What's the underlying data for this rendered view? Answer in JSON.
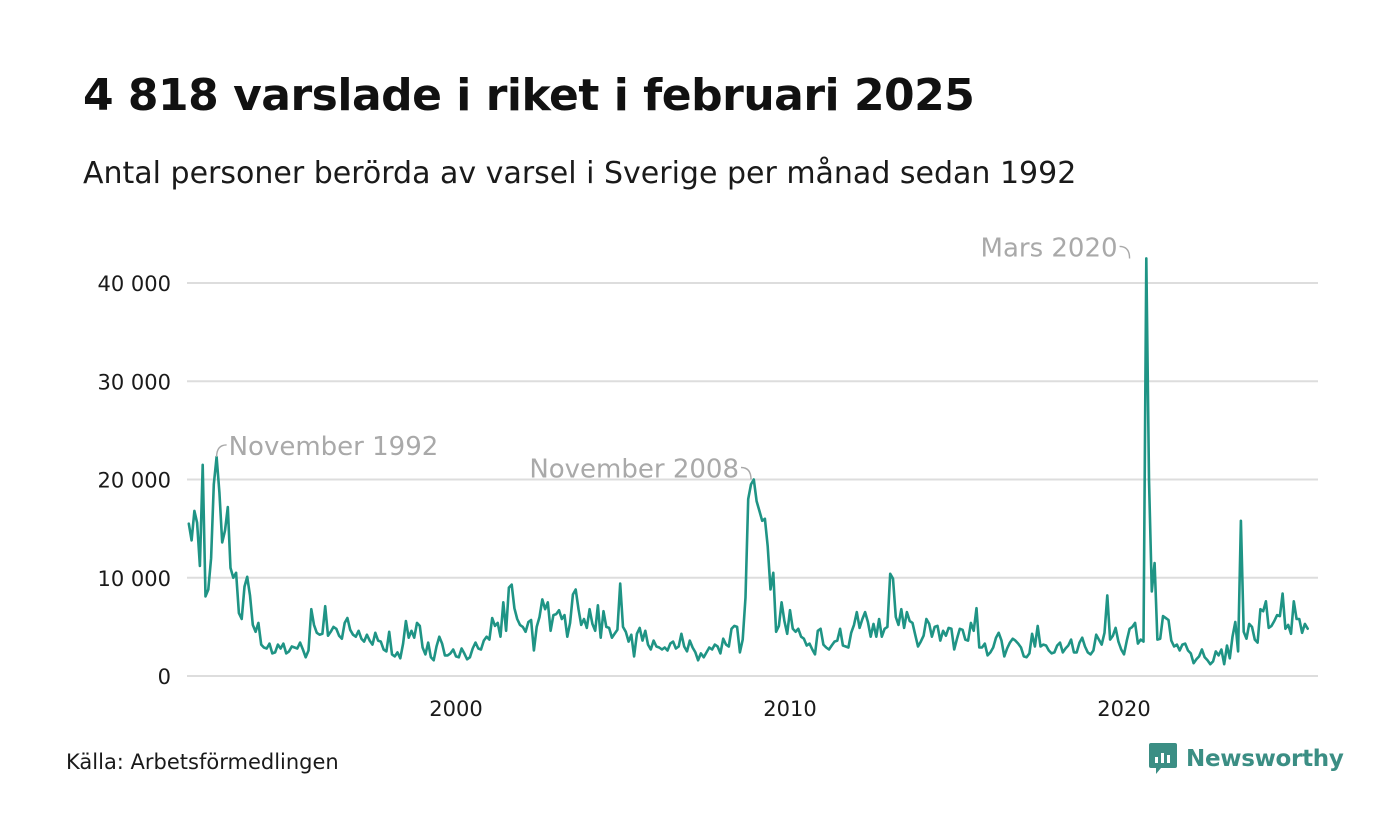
{
  "title": "4 818 varslade i riket i februari 2025",
  "subtitle": "Antal personer berörda av varsel i Sverige per månad sedan 1992",
  "source": "Källa: Arbetsförmedlingen",
  "brand": {
    "name": "Newsworthy",
    "logo_icon": "chart-bubble-icon"
  },
  "colors": {
    "line": "#1f9485",
    "grid": "#dddddd",
    "annotation": "#a9a9a9",
    "brand": "#3b8e84"
  },
  "chart_data": {
    "type": "line",
    "x_unit": "year",
    "x_start": 1992.0,
    "x_step": 0.0833333333,
    "xlim": [
      1992.0,
      2025.25
    ],
    "ylim": [
      0,
      45000
    ],
    "x_ticks": [
      2000,
      2010,
      2020
    ],
    "x_tick_labels": [
      "2000",
      "2010",
      "2020"
    ],
    "y_ticks": [
      0,
      10000,
      20000,
      30000,
      40000
    ],
    "y_tick_labels": [
      "0",
      "10 000",
      "20 000",
      "30 000",
      "40 000"
    ],
    "grid": true,
    "annotations": [
      {
        "label": "November 1992",
        "x": 1992.833,
        "y": 22300,
        "side": "right"
      },
      {
        "label": "November 2008",
        "x": 2008.833,
        "y": 20000,
        "side": "left"
      },
      {
        "label": "Mars 2020",
        "x": 2020.167,
        "y": 42500,
        "side": "left"
      }
    ],
    "series": [
      {
        "values": [
          15500,
          13800,
          16800,
          15600,
          11200,
          21500,
          8100,
          8800,
          12000,
          19500,
          22300,
          18700,
          13600,
          14800,
          17200,
          11000,
          10000,
          10500,
          6400,
          5800,
          9100,
          10100,
          8200,
          5200,
          4500,
          5400,
          3200,
          2900,
          2800,
          3300,
          2300,
          2400,
          3200,
          2800,
          3300,
          2300,
          2500,
          3000,
          2900,
          2800,
          3400,
          2700,
          1900,
          2600,
          6800,
          5200,
          4400,
          4200,
          4300,
          7100,
          4100,
          4500,
          5000,
          4800,
          4100,
          3800,
          5400,
          5900,
          4700,
          4200,
          4000,
          4600,
          3800,
          3500,
          4200,
          3600,
          3200,
          4400,
          3600,
          3500,
          2700,
          2500,
          4500,
          2200,
          2000,
          2400,
          1800,
          3300,
          5600,
          3900,
          4600,
          3900,
          5400,
          5100,
          2900,
          2200,
          3400,
          1900,
          1600,
          3000,
          4000,
          3300,
          2100,
          2100,
          2300,
          2700,
          2000,
          1900,
          2800,
          2300,
          1700,
          1900,
          2800,
          3400,
          2800,
          2700,
          3600,
          4000,
          3700,
          5900,
          5100,
          5400,
          4000,
          7500,
          4600,
          9000,
          9300,
          6900,
          5800,
          5200,
          5000,
          4500,
          5500,
          5700,
          2600,
          5000,
          6000,
          7800,
          6800,
          7500,
          4600,
          6200,
          6300,
          6700,
          5800,
          6200,
          4000,
          5400,
          8300,
          8800,
          6800,
          5200,
          5800,
          4900,
          6800,
          5300,
          4600,
          7200,
          3900,
          6600,
          5000,
          4900,
          3900,
          4300,
          4700,
          9400,
          5000,
          4500,
          3500,
          4200,
          2000,
          4300,
          4900,
          3600,
          4600,
          3200,
          2700,
          3600,
          3000,
          2900,
          2700,
          2900,
          2600,
          3300,
          3500,
          2800,
          3000,
          4300,
          3000,
          2500,
          3600,
          2900,
          2400,
          1600,
          2300,
          1900,
          2400,
          2900,
          2700,
          3200,
          3000,
          2300,
          3800,
          3200,
          3000,
          4800,
          5100,
          5000,
          2400,
          3700,
          8000,
          18000,
          19500,
          20000,
          17800,
          16800,
          15800,
          16000,
          13200,
          8800,
          10500,
          4500,
          5100,
          7500,
          5600,
          4300,
          6700,
          4800,
          4500,
          4800,
          4000,
          3800,
          3100,
          3300,
          2700,
          2200,
          4600,
          4800,
          3200,
          2900,
          2700,
          3100,
          3500,
          3600,
          4800,
          3100,
          3000,
          2900,
          4400,
          5200,
          6500,
          4900,
          5800,
          6500,
          5500,
          4000,
          5300,
          4000,
          5800,
          4000,
          4800,
          5000,
          10400,
          9900,
          6000,
          5200,
          6800,
          4900,
          6500,
          5600,
          5400,
          4200,
          3000,
          3500,
          4100,
          5800,
          5300,
          4000,
          5000,
          5100,
          3600,
          4600,
          4100,
          4900,
          4800,
          2700,
          3800,
          4800,
          4700,
          3700,
          3600,
          5400,
          4600,
          6900,
          2900,
          2900,
          3300,
          2100,
          2400,
          2900,
          3900,
          4400,
          3600,
          2000,
          2800,
          3400,
          3800,
          3600,
          3300,
          2900,
          2000,
          1900,
          2300,
          4300,
          3000,
          5100,
          3000,
          3200,
          3100,
          2600,
          2300,
          2400,
          3100,
          3400,
          2400,
          2800,
          3100,
          3700,
          2400,
          2400,
          3400,
          3900,
          3000,
          2400,
          2200,
          2600,
          4200,
          3700,
          3200,
          4400,
          8200,
          3700,
          4100,
          4900,
          3500,
          2700,
          2200,
          3600,
          4800,
          5000,
          5400,
          3300,
          3700,
          3500,
          42500,
          20000,
          8600,
          11500,
          3700,
          3800,
          6100,
          5900,
          5700,
          3600,
          3000,
          3200,
          2600,
          3200,
          3300,
          2600,
          2300,
          1300,
          1700,
          2000,
          2700,
          1900,
          1600,
          1200,
          1500,
          2500,
          2100,
          2700,
          1200,
          3100,
          1800,
          4000,
          5500,
          2500,
          15800,
          4500,
          3800,
          5300,
          5000,
          3700,
          3400,
          6800,
          6600,
          7600,
          4900,
          5100,
          5600,
          6200,
          6100,
          8400,
          4800,
          5200,
          4300,
          7600,
          5800,
          5800,
          4400,
          5300,
          4818
        ]
      }
    ]
  }
}
